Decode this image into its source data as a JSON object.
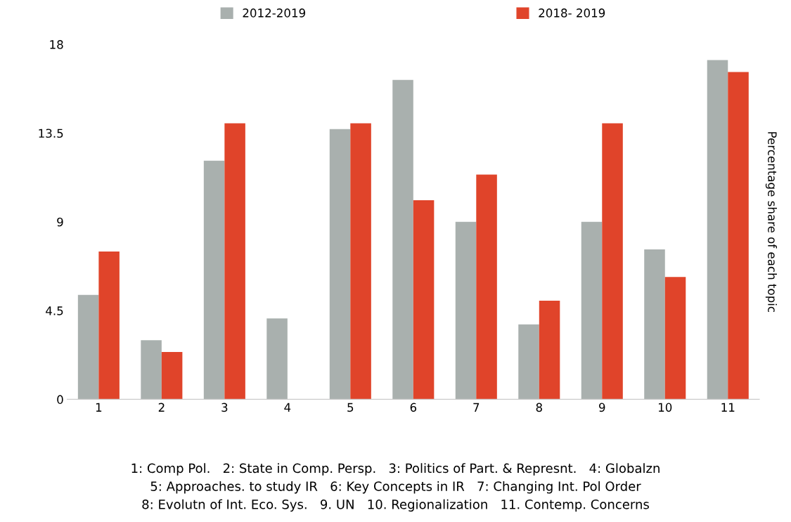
{
  "chart_data": {
    "type": "bar",
    "categories": [
      "1",
      "2",
      "3",
      "4",
      "5",
      "6",
      "7",
      "8",
      "9",
      "10",
      "11"
    ],
    "series": [
      {
        "name": "2012-2019",
        "color": "#a9b0ae",
        "values": [
          5.3,
          3.0,
          12.1,
          4.1,
          13.7,
          16.2,
          9.0,
          3.8,
          9.0,
          7.6,
          17.2
        ]
      },
      {
        "name": "2018- 2019",
        "color": "#e0442a",
        "values": [
          7.5,
          2.4,
          14.0,
          0,
          14.0,
          10.1,
          11.4,
          5.0,
          14.0,
          6.2,
          16.6
        ]
      }
    ],
    "ylabel": "Percentage share of each topic",
    "ylim": [
      0,
      18
    ],
    "yticks": [
      0,
      4.5,
      9,
      13.5,
      18
    ],
    "grid": false,
    "legend": "top",
    "annotations": [
      "1: Comp Pol.   2: State in Comp. Persp.   3: Politics of Part. & Represnt.   4: Globalzn\n5: Approaches. to study IR   6: Key Concepts in IR   7: Changing Int. Pol Order\n8: Evolutn of Int. Eco. Sys.   9. UN   10. Regionalization   11. Contemp. Concerns"
    ]
  }
}
